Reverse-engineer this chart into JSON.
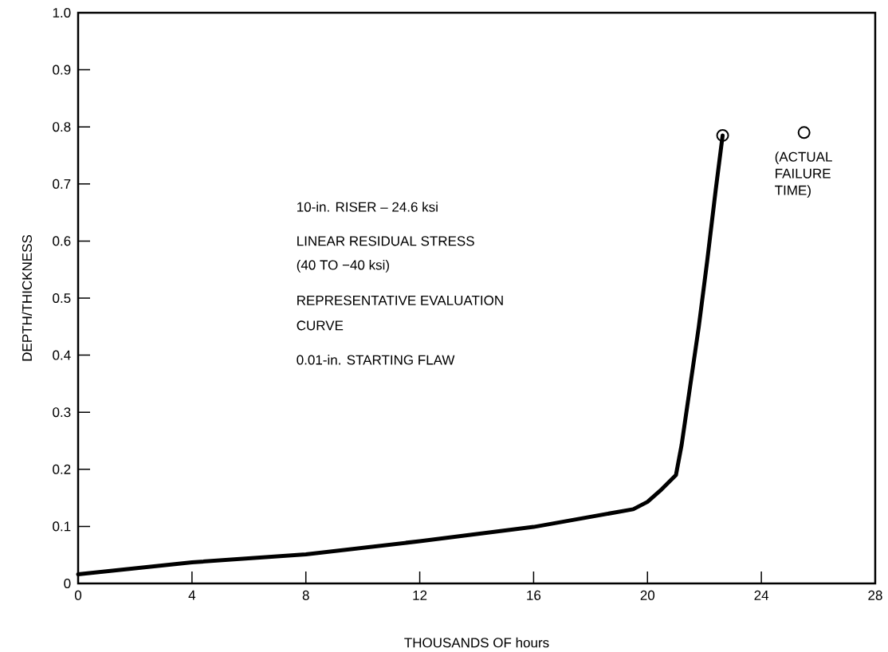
{
  "chart_data": {
    "type": "line",
    "xlabel": "THOUSANDS OF hours",
    "ylabel": "DEPTH/THICKNESS",
    "xlim": [
      0,
      28
    ],
    "ylim": [
      0,
      1
    ],
    "xticks": [
      0,
      4,
      8,
      12,
      16,
      20,
      24,
      28
    ],
    "yticks": [
      0,
      0.1,
      0.2,
      0.3,
      0.4,
      0.5,
      0.6,
      0.7,
      0.8,
      0.9,
      {
        "value": 1,
        "label": "1.0"
      }
    ],
    "grid": false,
    "series": [
      {
        "color": "#000000",
        "x": [
          0,
          4,
          8,
          12,
          16,
          19.5,
          20,
          20.5,
          21,
          21.2,
          21.5,
          21.8,
          22.1,
          22.4,
          22.64
        ],
        "values": [
          0.016,
          0.037,
          0.051,
          0.074,
          0.099,
          0.13,
          0.143,
          0.165,
          0.19,
          0.243,
          0.346,
          0.449,
          0.566,
          0.691,
          0.785
        ]
      },
      {
        "type": "scatter",
        "color": "#000000",
        "marker": "circle",
        "x": [
          22.64
        ],
        "values": [
          0.785
        ]
      },
      {
        "type": "scatter",
        "color": "#000000",
        "marker": "circle",
        "x": [
          25.5
        ],
        "values": [
          0.79
        ]
      }
    ],
    "annotations": [
      "10-in. RISER – 24.6 ksi",
      "LINEAR RESIDUAL STRESS",
      "(40 TO −40 ksi)",
      "REPRESENTATIVE EVALUATION",
      "CURVE",
      "0.01-in. STARTING FLAW",
      {
        "text": "(ACTUAL FAILURE TIME)",
        "x": 25.5,
        "y": 0.79
      }
    ]
  }
}
